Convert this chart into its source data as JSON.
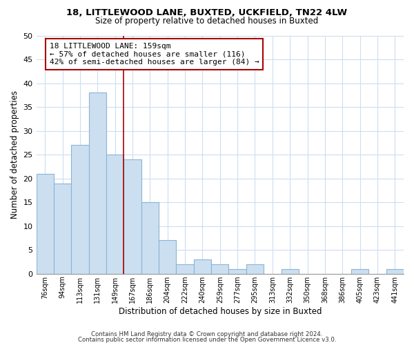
{
  "title": "18, LITTLEWOOD LANE, BUXTED, UCKFIELD, TN22 4LW",
  "subtitle": "Size of property relative to detached houses in Buxted",
  "xlabel": "Distribution of detached houses by size in Buxted",
  "ylabel": "Number of detached properties",
  "bar_color": "#ccdff0",
  "bar_edge_color": "#8ab4d4",
  "categories": [
    "76sqm",
    "94sqm",
    "113sqm",
    "131sqm",
    "149sqm",
    "167sqm",
    "186sqm",
    "204sqm",
    "222sqm",
    "240sqm",
    "259sqm",
    "277sqm",
    "295sqm",
    "313sqm",
    "332sqm",
    "350sqm",
    "368sqm",
    "386sqm",
    "405sqm",
    "423sqm",
    "441sqm"
  ],
  "values": [
    21,
    19,
    27,
    38,
    25,
    24,
    15,
    7,
    2,
    3,
    2,
    1,
    2,
    0,
    1,
    0,
    0,
    0,
    1,
    0,
    1
  ],
  "vline_x": 4.5,
  "vline_color": "#aa0000",
  "annotation_line1": "18 LITTLEWOOD LANE: 159sqm",
  "annotation_line2": "← 57% of detached houses are smaller (116)",
  "annotation_line3": "42% of semi-detached houses are larger (84) →",
  "annotation_box_edge": "#aa0000",
  "ylim": [
    0,
    50
  ],
  "yticks": [
    0,
    5,
    10,
    15,
    20,
    25,
    30,
    35,
    40,
    45,
    50
  ],
  "footer1": "Contains HM Land Registry data © Crown copyright and database right 2024.",
  "footer2": "Contains public sector information licensed under the Open Government Licence v3.0.",
  "background_color": "#ffffff",
  "grid_color": "#ccddf0"
}
